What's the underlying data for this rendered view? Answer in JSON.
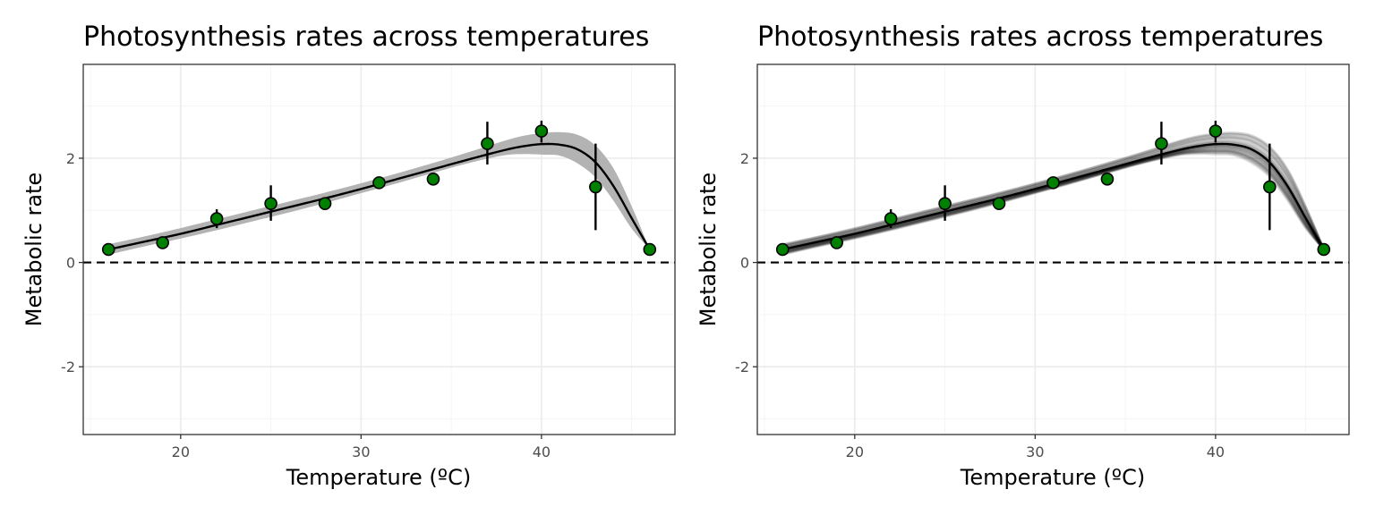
{
  "chart_data": [
    {
      "type": "scatter",
      "title": "Photosynthesis rates across temperatures",
      "xlabel": "Temperature (ºC)",
      "ylabel": "Metabolic rate",
      "xlim": [
        14.6,
        47.4
      ],
      "ylim": [
        -3.3,
        3.8
      ],
      "xticks": [
        20,
        30,
        40
      ],
      "yticks": [
        -2,
        0,
        2
      ],
      "xtick_labels": [
        "20",
        "30",
        "40"
      ],
      "ytick_labels": [
        "-2",
        "0",
        "2"
      ],
      "grid": true,
      "reference_line": {
        "y": 0,
        "style": "dashed"
      },
      "ribbon_style": "confidence band",
      "series": [
        {
          "name": "observed",
          "x": [
            16,
            19,
            22,
            25,
            28,
            31,
            34,
            37,
            40,
            43,
            46
          ],
          "values": [
            0.25,
            0.38,
            0.84,
            1.13,
            1.13,
            1.53,
            1.6,
            2.28,
            2.52,
            1.45,
            0.25
          ],
          "error_low": [
            null,
            null,
            0.66,
            0.8,
            null,
            null,
            null,
            1.88,
            2.3,
            0.62,
            null
          ],
          "error_high": [
            null,
            null,
            1.02,
            1.48,
            null,
            null,
            null,
            2.7,
            2.72,
            2.28,
            null
          ]
        },
        {
          "name": "fit",
          "x": [
            16,
            18,
            20,
            22,
            24,
            26,
            28,
            30,
            32,
            34,
            36,
            38,
            39,
            40,
            41,
            42,
            43,
            44,
            45,
            46
          ],
          "values": [
            0.25,
            0.4,
            0.55,
            0.72,
            0.89,
            1.06,
            1.23,
            1.41,
            1.6,
            1.79,
            1.98,
            2.16,
            2.23,
            2.27,
            2.26,
            2.17,
            1.92,
            1.46,
            0.85,
            0.25
          ]
        },
        {
          "name": "band-lower",
          "x": [
            16,
            18,
            20,
            22,
            24,
            26,
            28,
            30,
            32,
            34,
            36,
            38,
            39,
            40,
            41,
            42,
            43,
            44,
            45,
            46
          ],
          "values": [
            0.15,
            0.31,
            0.46,
            0.62,
            0.79,
            0.96,
            1.14,
            1.33,
            1.52,
            1.72,
            1.91,
            2.06,
            2.08,
            2.07,
            2.05,
            1.9,
            1.63,
            1.18,
            0.65,
            0.25
          ]
        },
        {
          "name": "band-upper",
          "x": [
            16,
            18,
            20,
            22,
            24,
            26,
            28,
            30,
            32,
            34,
            36,
            38,
            39,
            40,
            41,
            42,
            43,
            44,
            45,
            46
          ],
          "values": [
            0.35,
            0.5,
            0.66,
            0.83,
            1.0,
            1.17,
            1.34,
            1.52,
            1.71,
            1.91,
            2.12,
            2.34,
            2.43,
            2.48,
            2.5,
            2.45,
            2.24,
            1.8,
            1.08,
            0.25
          ]
        }
      ]
    },
    {
      "type": "scatter",
      "title": "Photosynthesis rates across temperatures",
      "xlabel": "Temperature (ºC)",
      "ylabel": "Metabolic rate",
      "xlim": [
        14.6,
        47.4
      ],
      "ylim": [
        -3.3,
        3.8
      ],
      "xticks": [
        20,
        30,
        40
      ],
      "yticks": [
        -2,
        0,
        2
      ],
      "xtick_labels": [
        "20",
        "30",
        "40"
      ],
      "ytick_labels": [
        "-2",
        "0",
        "2"
      ],
      "grid": true,
      "reference_line": {
        "y": 0,
        "style": "dashed"
      },
      "ribbon_style": "bootstrap curves",
      "series": [
        {
          "name": "observed",
          "x": [
            16,
            19,
            22,
            25,
            28,
            31,
            34,
            37,
            40,
            43,
            46
          ],
          "values": [
            0.25,
            0.38,
            0.84,
            1.13,
            1.13,
            1.53,
            1.6,
            2.28,
            2.52,
            1.45,
            0.25
          ],
          "error_low": [
            null,
            null,
            0.66,
            0.8,
            null,
            null,
            null,
            1.88,
            2.3,
            0.62,
            null
          ],
          "error_high": [
            null,
            null,
            1.02,
            1.48,
            null,
            null,
            null,
            2.7,
            2.72,
            2.28,
            null
          ]
        },
        {
          "name": "fit",
          "x": [
            16,
            18,
            20,
            22,
            24,
            26,
            28,
            30,
            32,
            34,
            36,
            38,
            39,
            40,
            41,
            42,
            43,
            44,
            45,
            46
          ],
          "values": [
            0.25,
            0.4,
            0.55,
            0.72,
            0.89,
            1.06,
            1.23,
            1.41,
            1.6,
            1.79,
            1.98,
            2.16,
            2.23,
            2.27,
            2.26,
            2.17,
            1.92,
            1.46,
            0.85,
            0.25
          ]
        },
        {
          "name": "band-lower",
          "x": [
            16,
            18,
            20,
            22,
            24,
            26,
            28,
            30,
            32,
            34,
            36,
            38,
            39,
            40,
            41,
            42,
            43,
            44,
            45,
            46
          ],
          "values": [
            0.15,
            0.31,
            0.46,
            0.62,
            0.79,
            0.96,
            1.14,
            1.33,
            1.52,
            1.72,
            1.91,
            2.06,
            2.08,
            2.07,
            2.05,
            1.9,
            1.63,
            1.18,
            0.65,
            0.25
          ]
        },
        {
          "name": "band-upper",
          "x": [
            16,
            18,
            20,
            22,
            24,
            26,
            28,
            30,
            32,
            34,
            36,
            38,
            39,
            40,
            41,
            42,
            43,
            44,
            45,
            46
          ],
          "values": [
            0.35,
            0.5,
            0.66,
            0.83,
            1.0,
            1.17,
            1.34,
            1.52,
            1.71,
            1.91,
            2.12,
            2.34,
            2.43,
            2.48,
            2.5,
            2.45,
            2.24,
            1.8,
            1.08,
            0.25
          ]
        }
      ]
    }
  ],
  "colors": {
    "point_fill": "#008000",
    "point_stroke": "#000000",
    "line": "#000000",
    "band": "#b3b3b3",
    "bootstrap": "#000000",
    "grid_major": "#ebebeb",
    "grid_minor": "#f5f5f5",
    "panel_border": "#333333"
  }
}
